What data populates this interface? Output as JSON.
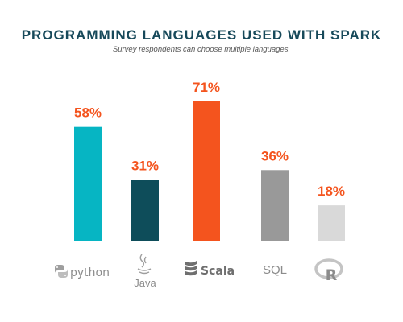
{
  "chart_data": {
    "type": "bar",
    "title": "PROGRAMMING LANGUAGES USED WITH SPARK",
    "subtitle": "Survey respondents can choose multiple languages.",
    "categories": [
      "python",
      "Java",
      "Scala",
      "SQL",
      "R"
    ],
    "values": [
      58,
      31,
      71,
      36,
      18
    ],
    "value_labels": [
      "58%",
      "31%",
      "71%",
      "36%",
      "18%"
    ],
    "unit": "%",
    "ylim": [
      0,
      100
    ],
    "grid": false,
    "legend": "none",
    "colors": [
      "#06b5c3",
      "#0e4d5a",
      "#f4541e",
      "#999999",
      "#d9d9d9"
    ],
    "label_color": "#f4541e",
    "category_icons": [
      "python-logo-icon",
      "java-logo-icon",
      "scala-logo-icon",
      "",
      "r-logo-icon"
    ]
  }
}
